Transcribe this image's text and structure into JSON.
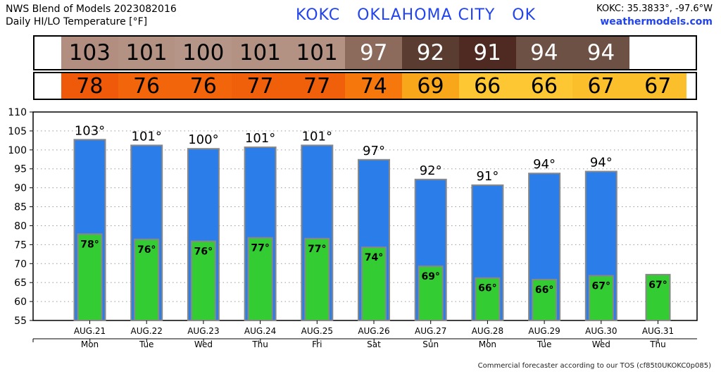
{
  "header": {
    "title_line1": "NWS Blend of Models 2023082016",
    "title_line2": "Daily HI/LO Temperature [°F]",
    "station_line": "KOKC   OKLAHOMA CITY   OK",
    "coords": "KOKC: 35.3833°, -97.6°W",
    "site": "weathermodels.com"
  },
  "footer": "Commercial forecaster according to our TOS (cf85t0UKOKC0p085)",
  "hi_strip": [
    {
      "value": "103",
      "bg": "#b28e80",
      "fg": "#000000"
    },
    {
      "value": "101",
      "bg": "#b49283",
      "fg": "#000000"
    },
    {
      "value": "100",
      "bg": "#b49587",
      "fg": "#000000"
    },
    {
      "value": "101",
      "bg": "#b49283",
      "fg": "#000000"
    },
    {
      "value": "101",
      "bg": "#b49283",
      "fg": "#000000"
    },
    {
      "value": "97",
      "bg": "#8c6b5d",
      "fg": "#ffffff"
    },
    {
      "value": "92",
      "bg": "#5a3d30",
      "fg": "#ffffff"
    },
    {
      "value": "91",
      "bg": "#4e2a22",
      "fg": "#ffffff"
    },
    {
      "value": "94",
      "bg": "#6e5145",
      "fg": "#ffffff"
    },
    {
      "value": "94",
      "bg": "#6e5145",
      "fg": "#ffffff"
    }
  ],
  "lo_strip": [
    {
      "value": "78",
      "bg": "#ee5a0a",
      "fg": "#000000"
    },
    {
      "value": "76",
      "bg": "#f2650a",
      "fg": "#000000"
    },
    {
      "value": "76",
      "bg": "#f2650a",
      "fg": "#000000"
    },
    {
      "value": "77",
      "bg": "#f0600a",
      "fg": "#000000"
    },
    {
      "value": "77",
      "bg": "#f0600a",
      "fg": "#000000"
    },
    {
      "value": "74",
      "bg": "#f6780c",
      "fg": "#000000"
    },
    {
      "value": "69",
      "bg": "#f8a71a",
      "fg": "#000000"
    },
    {
      "value": "66",
      "bg": "#fcc733",
      "fg": "#000000"
    },
    {
      "value": "66",
      "bg": "#fcc733",
      "fg": "#000000"
    },
    {
      "value": "67",
      "bg": "#fbbf2c",
      "fg": "#000000"
    },
    {
      "value": "67",
      "bg": "#fbbf2c",
      "fg": "#000000"
    }
  ],
  "colors": {
    "hi_bar": "#2b7de9",
    "lo_bar": "#33cc33",
    "bar_edge": "#888888",
    "grid": "#999999"
  },
  "chart_data": {
    "type": "bar",
    "title": "Daily HI/LO Temperature [°F]",
    "categories": [
      "AUG.21",
      "AUG.22",
      "AUG.23",
      "AUG.24",
      "AUG.25",
      "AUG.26",
      "AUG.27",
      "AUG.28",
      "AUG.29",
      "AUG.30",
      "AUG.31"
    ],
    "weekdays": [
      "Mon",
      "Tue",
      "Wed",
      "Thu",
      "Fri",
      "Sat",
      "Sun",
      "Mon",
      "Tue",
      "Wed",
      "Thu"
    ],
    "series": [
      {
        "values": [
          102.7,
          101.2,
          100.3,
          100.7,
          101.2,
          97.4,
          92.2,
          90.7,
          93.8,
          94.3,
          null
        ],
        "labels": [
          "103°",
          "101°",
          "100°",
          "101°",
          "101°",
          "97°",
          "92°",
          "91°",
          "94°",
          "94°",
          ""
        ]
      },
      {
        "values": [
          77.8,
          76.4,
          75.9,
          76.8,
          76.6,
          74.3,
          69.3,
          66.2,
          65.8,
          66.8,
          67.1
        ],
        "labels": [
          "78°",
          "76°",
          "76°",
          "77°",
          "77°",
          "74°",
          "69°",
          "66°",
          "66°",
          "67°",
          "67°"
        ]
      }
    ],
    "ylim": [
      55,
      110
    ],
    "yticks": [
      55,
      60,
      65,
      70,
      75,
      80,
      85,
      90,
      95,
      100,
      105,
      110
    ],
    "grid": true,
    "xlabel": "",
    "ylabel": ""
  }
}
